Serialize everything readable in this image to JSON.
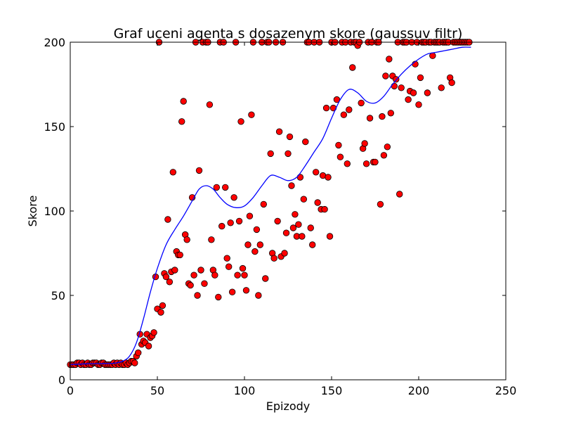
{
  "chart_data": {
    "type": "scatter",
    "title": "Graf uceni agenta s dosazenym skore (gaussuv filtr)",
    "xlabel": "Epizody",
    "ylabel": "Skore",
    "xlim": [
      0,
      250
    ],
    "ylim": [
      0,
      200
    ],
    "xticks": [
      0,
      50,
      100,
      150,
      200,
      250
    ],
    "yticks": [
      0,
      50,
      100,
      150,
      200
    ],
    "grid": false,
    "legend": "none",
    "colors": {
      "points": "#ff0000",
      "point_edge": "#000000",
      "line": "#0000ff"
    },
    "series": [
      {
        "kind": "scatter",
        "points": [
          [
            0,
            9
          ],
          [
            1,
            9
          ],
          [
            2,
            9
          ],
          [
            3,
            9
          ],
          [
            4,
            10
          ],
          [
            5,
            10
          ],
          [
            6,
            9
          ],
          [
            7,
            10
          ],
          [
            8,
            9
          ],
          [
            9,
            9
          ],
          [
            10,
            10
          ],
          [
            11,
            9
          ],
          [
            12,
            9
          ],
          [
            13,
            10
          ],
          [
            14,
            10
          ],
          [
            15,
            10
          ],
          [
            16,
            9
          ],
          [
            17,
            9
          ],
          [
            18,
            10
          ],
          [
            19,
            10
          ],
          [
            20,
            9
          ],
          [
            21,
            9
          ],
          [
            22,
            9
          ],
          [
            23,
            9
          ],
          [
            24,
            9
          ],
          [
            25,
            10
          ],
          [
            26,
            9
          ],
          [
            27,
            10
          ],
          [
            28,
            9
          ],
          [
            29,
            10
          ],
          [
            30,
            9
          ],
          [
            31,
            9
          ],
          [
            32,
            10
          ],
          [
            33,
            9
          ],
          [
            34,
            10
          ],
          [
            35,
            11
          ],
          [
            36,
            11
          ],
          [
            37,
            10
          ],
          [
            38,
            14
          ],
          [
            39,
            16
          ],
          [
            40,
            27
          ],
          [
            41,
            21
          ],
          [
            42,
            23
          ],
          [
            43,
            22
          ],
          [
            44,
            27
          ],
          [
            45,
            20
          ],
          [
            46,
            25
          ],
          [
            47,
            26
          ],
          [
            48,
            28
          ],
          [
            49,
            61
          ],
          [
            50,
            42
          ],
          [
            51,
            200
          ],
          [
            52,
            40
          ],
          [
            53,
            44
          ],
          [
            54,
            63
          ],
          [
            55,
            61
          ],
          [
            56,
            95
          ],
          [
            57,
            58
          ],
          [
            58,
            64
          ],
          [
            59,
            123
          ],
          [
            60,
            65
          ],
          [
            61,
            76
          ],
          [
            62,
            74
          ],
          [
            63,
            74
          ],
          [
            64,
            153
          ],
          [
            65,
            165
          ],
          [
            66,
            86
          ],
          [
            67,
            83
          ],
          [
            68,
            57
          ],
          [
            69,
            56
          ],
          [
            70,
            108
          ],
          [
            71,
            62
          ],
          [
            72,
            200
          ],
          [
            73,
            50
          ],
          [
            74,
            124
          ],
          [
            75,
            65
          ],
          [
            76,
            200
          ],
          [
            77,
            57
          ],
          [
            78,
            200
          ],
          [
            79,
            200
          ],
          [
            80,
            163
          ],
          [
            81,
            83
          ],
          [
            82,
            65
          ],
          [
            83,
            62
          ],
          [
            84,
            114
          ],
          [
            85,
            49
          ],
          [
            86,
            200
          ],
          [
            87,
            91
          ],
          [
            88,
            200
          ],
          [
            89,
            114
          ],
          [
            90,
            72
          ],
          [
            91,
            67
          ],
          [
            92,
            93
          ],
          [
            93,
            52
          ],
          [
            94,
            108
          ],
          [
            95,
            200
          ],
          [
            96,
            62
          ],
          [
            97,
            94
          ],
          [
            98,
            153
          ],
          [
            99,
            66
          ],
          [
            100,
            62
          ],
          [
            101,
            53
          ],
          [
            102,
            80
          ],
          [
            103,
            97
          ],
          [
            104,
            157
          ],
          [
            105,
            200
          ],
          [
            106,
            76
          ],
          [
            107,
            89
          ],
          [
            108,
            50
          ],
          [
            109,
            80
          ],
          [
            110,
            200
          ],
          [
            111,
            104
          ],
          [
            112,
            60
          ],
          [
            113,
            200
          ],
          [
            114,
            200
          ],
          [
            115,
            134
          ],
          [
            116,
            75
          ],
          [
            117,
            72
          ],
          [
            118,
            200
          ],
          [
            119,
            94
          ],
          [
            120,
            147
          ],
          [
            121,
            73
          ],
          [
            122,
            200
          ],
          [
            123,
            75
          ],
          [
            124,
            87
          ],
          [
            125,
            134
          ],
          [
            126,
            144
          ],
          [
            127,
            115
          ],
          [
            128,
            90
          ],
          [
            129,
            98
          ],
          [
            130,
            85
          ],
          [
            131,
            92
          ],
          [
            132,
            120
          ],
          [
            133,
            85
          ],
          [
            134,
            107
          ],
          [
            135,
            141
          ],
          [
            136,
            200
          ],
          [
            137,
            200
          ],
          [
            138,
            90
          ],
          [
            139,
            80
          ],
          [
            140,
            200
          ],
          [
            141,
            123
          ],
          [
            142,
            105
          ],
          [
            143,
            200
          ],
          [
            144,
            101
          ],
          [
            145,
            121
          ],
          [
            146,
            101
          ],
          [
            147,
            161
          ],
          [
            148,
            120
          ],
          [
            149,
            85
          ],
          [
            150,
            200
          ],
          [
            151,
            161
          ],
          [
            152,
            200
          ],
          [
            153,
            166
          ],
          [
            154,
            139
          ],
          [
            155,
            132
          ],
          [
            156,
            200
          ],
          [
            157,
            157
          ],
          [
            158,
            200
          ],
          [
            159,
            128
          ],
          [
            160,
            160
          ],
          [
            161,
            200
          ],
          [
            162,
            185
          ],
          [
            163,
            200
          ],
          [
            164,
            200
          ],
          [
            165,
            198
          ],
          [
            166,
            200
          ],
          [
            167,
            164
          ],
          [
            168,
            137
          ],
          [
            169,
            140
          ],
          [
            170,
            128
          ],
          [
            171,
            200
          ],
          [
            172,
            155
          ],
          [
            173,
            200
          ],
          [
            174,
            129
          ],
          [
            175,
            129
          ],
          [
            176,
            200
          ],
          [
            177,
            200
          ],
          [
            178,
            104
          ],
          [
            179,
            156
          ],
          [
            180,
            133
          ],
          [
            181,
            180
          ],
          [
            182,
            138
          ],
          [
            183,
            190
          ],
          [
            184,
            158
          ],
          [
            185,
            180
          ],
          [
            186,
            174
          ],
          [
            187,
            178
          ],
          [
            188,
            200
          ],
          [
            189,
            110
          ],
          [
            190,
            173
          ],
          [
            191,
            200
          ],
          [
            192,
            200
          ],
          [
            193,
            200
          ],
          [
            194,
            166
          ],
          [
            195,
            171
          ],
          [
            196,
            200
          ],
          [
            197,
            170
          ],
          [
            198,
            187
          ],
          [
            199,
            200
          ],
          [
            200,
            163
          ],
          [
            201,
            179
          ],
          [
            202,
            200
          ],
          [
            203,
            200
          ],
          [
            204,
            200
          ],
          [
            205,
            170
          ],
          [
            206,
            200
          ],
          [
            207,
            200
          ],
          [
            208,
            192
          ],
          [
            209,
            200
          ],
          [
            210,
            200
          ],
          [
            211,
            200
          ],
          [
            212,
            200
          ],
          [
            213,
            173
          ],
          [
            214,
            200
          ],
          [
            215,
            200
          ],
          [
            216,
            200
          ],
          [
            217,
            200
          ],
          [
            218,
            179
          ],
          [
            219,
            176
          ],
          [
            220,
            200
          ],
          [
            221,
            200
          ],
          [
            222,
            200
          ],
          [
            223,
            200
          ],
          [
            224,
            200
          ],
          [
            225,
            200
          ],
          [
            226,
            200
          ],
          [
            227,
            200
          ],
          [
            228,
            200
          ],
          [
            229,
            200
          ]
        ]
      },
      {
        "kind": "line",
        "points": [
          [
            0,
            9
          ],
          [
            10,
            9.5
          ],
          [
            20,
            9.6
          ],
          [
            25,
            9.8
          ],
          [
            30,
            11
          ],
          [
            34,
            14
          ],
          [
            38,
            22
          ],
          [
            42,
            36
          ],
          [
            46,
            52
          ],
          [
            50,
            66
          ],
          [
            55,
            80
          ],
          [
            60,
            89
          ],
          [
            65,
            97
          ],
          [
            70,
            106
          ],
          [
            74,
            113
          ],
          [
            78,
            115
          ],
          [
            82,
            113
          ],
          [
            86,
            108
          ],
          [
            90,
            104
          ],
          [
            95,
            102
          ],
          [
            100,
            103
          ],
          [
            105,
            108
          ],
          [
            110,
            115
          ],
          [
            115,
            121
          ],
          [
            120,
            120
          ],
          [
            125,
            118
          ],
          [
            130,
            120
          ],
          [
            135,
            127
          ],
          [
            140,
            135
          ],
          [
            145,
            143
          ],
          [
            150,
            155
          ],
          [
            155,
            166
          ],
          [
            160,
            172
          ],
          [
            165,
            170
          ],
          [
            170,
            165
          ],
          [
            175,
            164
          ],
          [
            180,
            168
          ],
          [
            185,
            175
          ],
          [
            190,
            181
          ],
          [
            195,
            186
          ],
          [
            200,
            190
          ],
          [
            205,
            193
          ],
          [
            210,
            194
          ],
          [
            215,
            195
          ],
          [
            220,
            196
          ],
          [
            225,
            197
          ],
          [
            230,
            197
          ]
        ]
      }
    ]
  }
}
